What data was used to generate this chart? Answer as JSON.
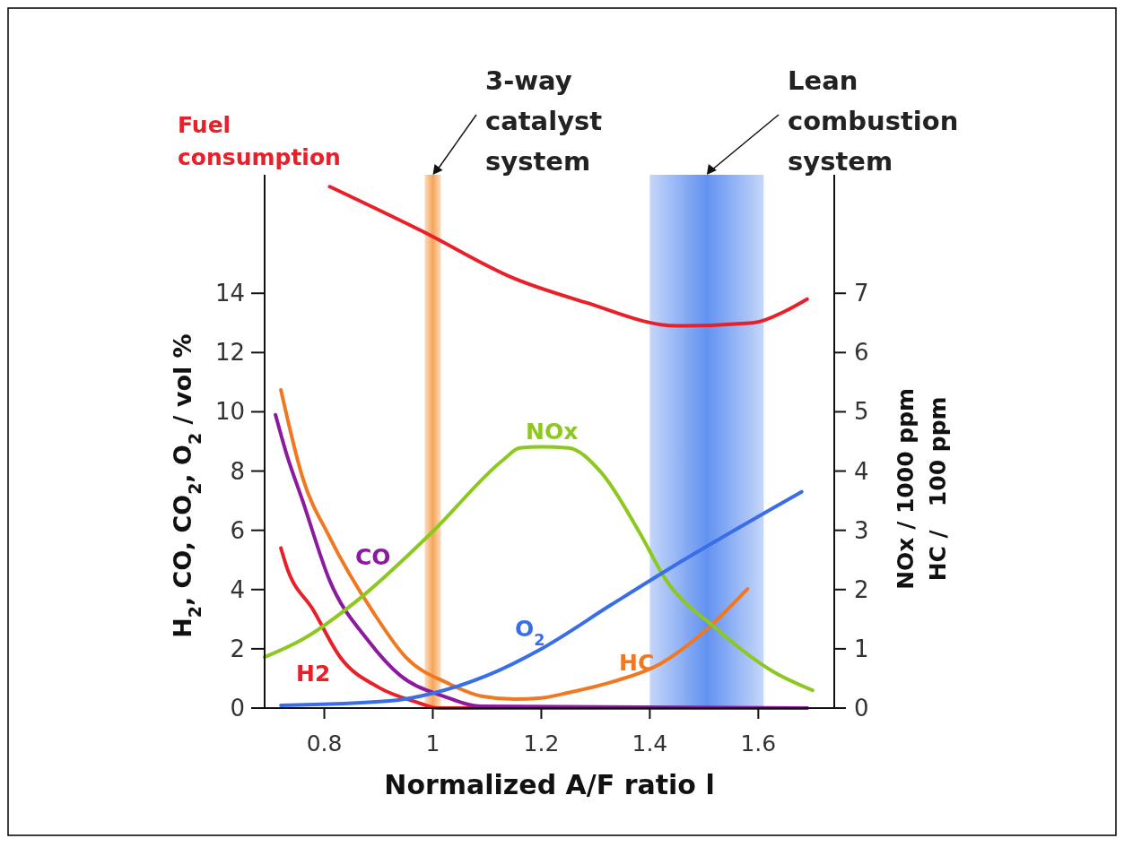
{
  "chart_data": {
    "type": "line",
    "xlabel": "Normalized A/F ratio l",
    "ylabel": "H$_{2}$,  CO, CO$_{2}$, O$_{2}$ / vol %",
    "y2label": "NOx / 1000 ppm\nHC /   100 ppm",
    "xlim": [
      0.69,
      1.74
    ],
    "xticks": [
      0.8,
      1,
      1.2,
      1.4,
      1.6
    ],
    "ylim": [
      0,
      18
    ],
    "yticks": [
      0,
      2,
      4,
      6,
      8,
      10,
      12,
      14
    ],
    "y2lim": [
      0,
      9
    ],
    "y2ticks": [
      0,
      1,
      2,
      3,
      4,
      5,
      6,
      7
    ],
    "grid": false,
    "series": [
      {
        "name": "Fuel consumption",
        "color": "#e8202a",
        "x": [
          0.81,
          0.98,
          1.15,
          1.28,
          1.45,
          1.59,
          1.65,
          1.69
        ],
        "values": [
          17.6,
          16.1,
          14.5,
          13.7,
          12.9,
          13.0,
          13.4,
          13.8
        ]
      },
      {
        "name": "H2",
        "color": "#e8202a",
        "x": [
          0.72,
          0.73,
          0.78,
          0.83,
          0.9,
          0.97,
          1.01,
          1.69
        ],
        "values": [
          5.4,
          4.8,
          3.3,
          1.7,
          0.7,
          0.2,
          0,
          0
        ]
      },
      {
        "name": "CO",
        "color": "#8b1a9e",
        "x": [
          0.71,
          0.73,
          0.76,
          0.81,
          0.88,
          0.94,
          1.02,
          1.09,
          1.69
        ],
        "values": [
          9.9,
          8.6,
          7.0,
          4.3,
          2.3,
          1.1,
          0.4,
          0.06,
          0
        ]
      },
      {
        "name": "HC",
        "color": "#f07820",
        "axis": "y2",
        "x": [
          0.72,
          0.76,
          0.81,
          0.89,
          0.95,
          1.03,
          1.09,
          1.15,
          1.2,
          1.25,
          1.33,
          1.42,
          1.49,
          1.58
        ],
        "values": [
          5.37,
          3.89,
          2.88,
          1.62,
          0.86,
          0.41,
          0.2,
          0.15,
          0.17,
          0.26,
          0.44,
          0.75,
          1.21,
          2.01
        ]
      },
      {
        "name": "NOx",
        "color": "#8cc820",
        "axis": "y2",
        "x": [
          0.69,
          0.76,
          0.86,
          1.0,
          1.13,
          1.16,
          1.2,
          1.25,
          1.31,
          1.38,
          1.43,
          1.52,
          1.63,
          1.7
        ],
        "values": [
          0.86,
          1.16,
          1.81,
          2.98,
          4.19,
          4.39,
          4.41,
          4.39,
          3.98,
          2.98,
          2.16,
          1.36,
          0.6,
          0.3
        ]
      },
      {
        "name": "O$_{2}$",
        "color": "#3a6ee8",
        "x": [
          0.72,
          0.92,
          1.0,
          1.1,
          1.2,
          1.33,
          1.44,
          1.68
        ],
        "values": [
          0.09,
          0.24,
          0.5,
          1.1,
          2.0,
          3.5,
          4.75,
          7.3
        ]
      }
    ],
    "bands": [
      {
        "axis": "x",
        "from": 0.985,
        "to": 1.015,
        "label": "3-way catalyst system",
        "color": "#f5a050"
      },
      {
        "axis": "x",
        "from": 1.4,
        "to": 1.61,
        "label": "Lean combustion system",
        "color": "#5a8cf0"
      }
    ]
  }
}
